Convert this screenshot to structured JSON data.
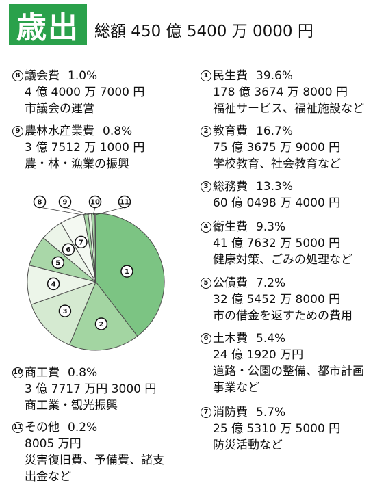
{
  "header": {
    "badge": "歳出",
    "total": "総額 450 億 5400 万 0000 円",
    "badge_color": "#2aa14b"
  },
  "items": [
    {
      "num": "①",
      "name": "民生費",
      "pct": "39.6%",
      "amount": "178 億 3674 万 8000 円",
      "desc": [
        "福祉サービス、福祉施設など"
      ]
    },
    {
      "num": "②",
      "name": "教育費",
      "pct": "16.7%",
      "amount": "75 億 3675 万 9000 円",
      "desc": [
        "学校教育、社会教育など"
      ]
    },
    {
      "num": "③",
      "name": "総務費",
      "pct": "13.3%",
      "amount": "60 億 0498 万 4000 円",
      "desc": []
    },
    {
      "num": "④",
      "name": "衛生費",
      "pct": "9.3%",
      "amount": "41 億 7632 万 5000 円",
      "desc": [
        "健康対策、ごみの処理など"
      ]
    },
    {
      "num": "⑤",
      "name": "公債費",
      "pct": "7.2%",
      "amount": "32 億 5452 万 8000 円",
      "desc": [
        "市の借金を返すための費用"
      ]
    },
    {
      "num": "⑥",
      "name": "土木費",
      "pct": "5.4%",
      "amount": "24 億 1920 万円",
      "desc": [
        "道路・公園の整備、都市計画",
        "事業など"
      ]
    },
    {
      "num": "⑦",
      "name": "消防費",
      "pct": "5.7%",
      "amount": "25 億 5310 万 5000 円",
      "desc": [
        "防災活動など"
      ]
    },
    {
      "num": "⑧",
      "name": "議会費",
      "pct": "1.0%",
      "amount": "4 億 4000 万 7000 円",
      "desc": [
        "市議会の運営"
      ]
    },
    {
      "num": "⑨",
      "name": "農林水産業費",
      "pct": "0.8%",
      "amount": "3 億 7512 万 1000 円",
      "desc": [
        "農・林・漁業の振興"
      ]
    },
    {
      "num": "⑩",
      "name": "商工費",
      "pct": "0.8%",
      "amount": "3 億 7717 万円 3000 円",
      "desc": [
        "商工業・観光振興"
      ]
    },
    {
      "num": "⑪",
      "name": "その他",
      "pct": "0.2%",
      "amount": "8005 万円",
      "desc": [
        "災害復旧費、予備費、諸支",
        "出金など"
      ]
    }
  ],
  "chart_data": {
    "type": "pie",
    "categories": [
      "①",
      "②",
      "③",
      "④",
      "⑤",
      "⑥",
      "⑦",
      "⑧",
      "⑨",
      "⑩",
      "⑪"
    ],
    "values": [
      39.6,
      16.7,
      13.3,
      9.3,
      7.2,
      5.4,
      5.7,
      1.0,
      0.8,
      0.8,
      0.2
    ],
    "colors": [
      "#7cc483",
      "#a3d5a2",
      "#d5ead1",
      "#ecf5e9",
      "#a9d7a8",
      "#ecf5e9",
      "#f4f9f2",
      "#a9d7a8",
      "#e4f1e0",
      "#a9d7a8",
      "#ffffff"
    ],
    "start_angle_deg": 0,
    "direction": "clockwise"
  }
}
